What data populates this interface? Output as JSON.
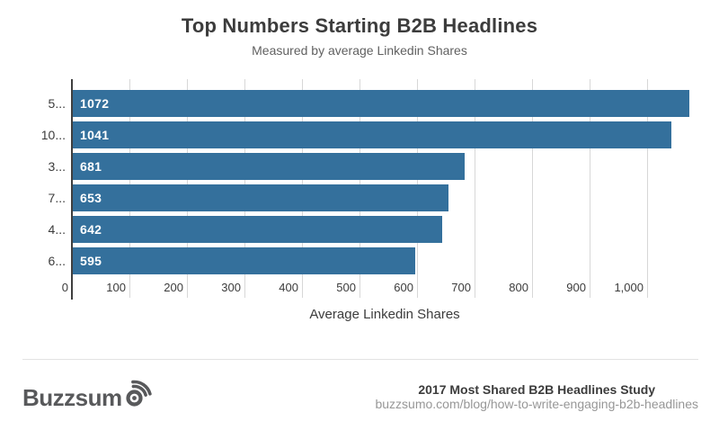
{
  "header": {
    "title": "Top Numbers Starting B2B Headlines",
    "subtitle": "Measured by average Linkedin Shares"
  },
  "chart_data": {
    "type": "bar",
    "orientation": "horizontal",
    "title": "Top Numbers Starting B2B Headlines",
    "subtitle": "Measured by average Linkedin Shares",
    "categories": [
      "5...",
      "10...",
      "3...",
      "7...",
      "4...",
      "6..."
    ],
    "values": [
      1072,
      1041,
      681,
      653,
      642,
      595
    ],
    "xlabel": "Average Linkedin Shares",
    "x_ticks": [
      0,
      100,
      200,
      300,
      400,
      500,
      600,
      700,
      800,
      900,
      1000
    ],
    "x_tick_labels": [
      "0",
      "100",
      "200",
      "300",
      "400",
      "500",
      "600",
      "700",
      "800",
      "900",
      "1,000"
    ],
    "xlim": [
      0,
      1087
    ],
    "grid": "vertical-gridlines",
    "legend": "none",
    "bar_color": "#34709c"
  },
  "footer": {
    "brand": "Buzzsumo",
    "brand_text": "Buzzsum",
    "study_title": "2017 Most Shared B2B Headlines Study",
    "url": "buzzsumo.com/blog/how-to-write-engaging-b2b-headlines"
  },
  "colors": {
    "bar": "#34709c",
    "axis_line": "#3f3f3f",
    "gridline": "#d7d7d7",
    "title_text": "#3c3c3c",
    "subtitle_text": "#616161",
    "value_label": "#ffffff",
    "divider": "#e3e3e3",
    "logo": "#58595b",
    "url_text": "#979797"
  }
}
